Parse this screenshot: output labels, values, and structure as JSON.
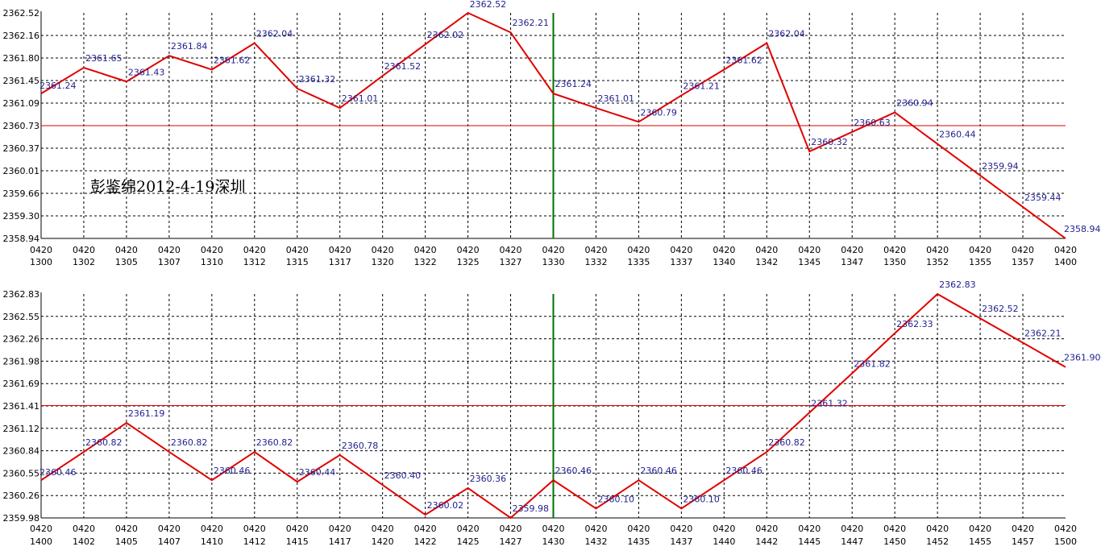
{
  "chart_data": [
    {
      "type": "line",
      "annotation": "彭鉴绵2012-4-19深圳",
      "ylim": [
        2358.94,
        2362.52
      ],
      "yticks": [
        "2362.52",
        "2362.16",
        "2361.80",
        "2361.45",
        "2361.09",
        "2360.73",
        "2360.37",
        "2360.01",
        "2359.66",
        "2359.30",
        "2358.94"
      ],
      "xticks": [
        [
          "0420",
          "1300"
        ],
        [
          "0420",
          "1302"
        ],
        [
          "0420",
          "1305"
        ],
        [
          "0420",
          "1307"
        ],
        [
          "0420",
          "1310"
        ],
        [
          "0420",
          "1312"
        ],
        [
          "0420",
          "1315"
        ],
        [
          "0420",
          "1317"
        ],
        [
          "0420",
          "1320"
        ],
        [
          "0420",
          "1322"
        ],
        [
          "0420",
          "1325"
        ],
        [
          "0420",
          "1327"
        ],
        [
          "0420",
          "1330"
        ],
        [
          "0420",
          "1332"
        ],
        [
          "0420",
          "1335"
        ],
        [
          "0420",
          "1337"
        ],
        [
          "0420",
          "1340"
        ],
        [
          "0420",
          "1342"
        ],
        [
          "0420",
          "1345"
        ],
        [
          "0420",
          "1347"
        ],
        [
          "0420",
          "1350"
        ],
        [
          "0420",
          "1352"
        ],
        [
          "0420",
          "1355"
        ],
        [
          "0420",
          "1357"
        ],
        [
          "0420",
          "1400"
        ]
      ],
      "values": [
        2361.24,
        2361.65,
        2361.43,
        2361.84,
        2361.62,
        2362.04,
        2361.32,
        2361.01,
        2361.52,
        2362.02,
        2362.52,
        2362.21,
        2361.24,
        2361.01,
        2360.79,
        2361.21,
        2361.62,
        2362.04,
        2360.32,
        2360.63,
        2360.94,
        2360.44,
        2359.94,
        2359.44,
        2358.94
      ],
      "labels": [
        "2361.24",
        "2361.65",
        "2361.43",
        "2361.84",
        "2361.62",
        "2362.04",
        "2361.32",
        "2361.01",
        "2361.52",
        "2362.02",
        "2362.52",
        "2362.21",
        "2361.24",
        "2361.01",
        "2360.79",
        "2361.21",
        "2361.62",
        "2362.04",
        "2360.32",
        "2360.63",
        "2360.94",
        "2360.44",
        "2359.94",
        "2359.44",
        "2358.94"
      ],
      "reference_y": 2360.73,
      "vertical_marker_index": 12,
      "colors": {
        "series": "#e00000",
        "reference": "#e00000",
        "marker": "#007000",
        "labels": "#1f1f8f"
      }
    },
    {
      "type": "line",
      "ylim": [
        2359.98,
        2362.83
      ],
      "yticks": [
        "2362.83",
        "2362.55",
        "2362.26",
        "2361.98",
        "2361.69",
        "2361.41",
        "2361.12",
        "2360.84",
        "2360.55",
        "2360.26",
        "2359.98"
      ],
      "xticks": [
        [
          "0420",
          "1400"
        ],
        [
          "0420",
          "1402"
        ],
        [
          "0420",
          "1405"
        ],
        [
          "0420",
          "1407"
        ],
        [
          "0420",
          "1410"
        ],
        [
          "0420",
          "1412"
        ],
        [
          "0420",
          "1415"
        ],
        [
          "0420",
          "1417"
        ],
        [
          "0420",
          "1420"
        ],
        [
          "0420",
          "1422"
        ],
        [
          "0420",
          "1425"
        ],
        [
          "0420",
          "1427"
        ],
        [
          "0420",
          "1430"
        ],
        [
          "0420",
          "1432"
        ],
        [
          "0420",
          "1435"
        ],
        [
          "0420",
          "1437"
        ],
        [
          "0420",
          "1440"
        ],
        [
          "0420",
          "1442"
        ],
        [
          "0420",
          "1445"
        ],
        [
          "0420",
          "1447"
        ],
        [
          "0420",
          "1450"
        ],
        [
          "0420",
          "1452"
        ],
        [
          "0420",
          "1455"
        ],
        [
          "0420",
          "1457"
        ],
        [
          "0420",
          "1500"
        ]
      ],
      "values": [
        2360.46,
        2360.82,
        2361.19,
        2360.82,
        2360.46,
        2360.82,
        2360.44,
        2360.78,
        2360.4,
        2360.02,
        2360.36,
        2359.98,
        2360.46,
        2360.1,
        2360.46,
        2360.1,
        2360.46,
        2360.82,
        2361.32,
        2361.82,
        2362.33,
        2362.83,
        2362.52,
        2362.21,
        2361.9
      ],
      "labels": [
        "2360.46",
        "2360.82",
        "2361.19",
        "2360.82",
        "2360.46",
        "2360.82",
        "2360.44",
        "2360.78",
        "2360.40",
        "2360.02",
        "2360.36",
        "2359.98",
        "2360.46",
        "2360.10",
        "2360.46",
        "2360.10",
        "2360.46",
        "2360.82",
        "2361.32",
        "2361.82",
        "2362.33",
        "2362.83",
        "2362.52",
        "2362.21",
        "2361.90"
      ],
      "reference_y": 2361.41,
      "vertical_marker_index": 12,
      "colors": {
        "series": "#e00000",
        "reference": "#e00000",
        "marker": "#007000",
        "labels": "#1f1f8f"
      }
    }
  ]
}
